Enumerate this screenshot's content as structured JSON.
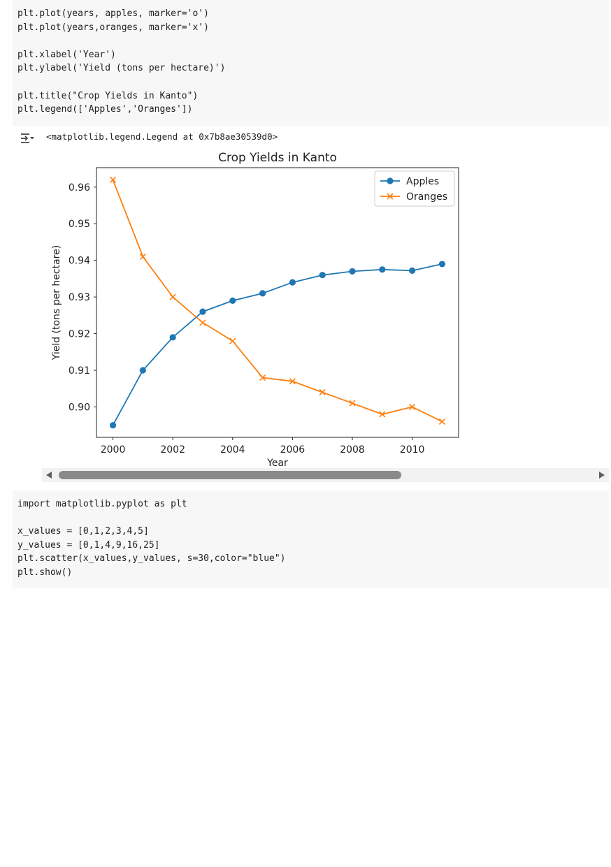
{
  "cells": [
    {
      "type": "code",
      "lines": [
        "plt.plot(years, apples, marker='o')",
        "plt.plot(years,oranges, marker='x')",
        "",
        "plt.xlabel('Year')",
        "plt.ylabel('Yield (tons per hectare)')",
        "",
        "plt.title(\"Crop Yields in Kanto\")",
        "plt.legend(['Apples','Oranges'])"
      ]
    },
    {
      "type": "code",
      "lines": [
        "import matplotlib.pyplot as plt",
        "",
        "x_values = [0,1,2,3,4,5]",
        "y_values = [0,1,4,9,16,25]",
        "plt.scatter(x_values,y_values, s=30,color=\"blue\")",
        "plt.show()"
      ]
    }
  ],
  "output": {
    "text": "<matplotlib.legend.Legend at 0x7b8ae30539d0>",
    "toggle_icon": "output-collapse-icon"
  },
  "chart_data": {
    "type": "line",
    "title": "Crop Yields in Kanto",
    "xlabel": "Year",
    "ylabel": "Yield (tons per hectare)",
    "x": [
      2000,
      2001,
      2002,
      2003,
      2004,
      2005,
      2006,
      2007,
      2008,
      2009,
      2010,
      2011
    ],
    "series": [
      {
        "name": "Apples",
        "marker": "o",
        "color": "#1f77b4",
        "values": [
          0.895,
          0.91,
          0.919,
          0.926,
          0.929,
          0.931,
          0.934,
          0.936,
          0.937,
          0.9375,
          0.9372,
          0.939
        ]
      },
      {
        "name": "Oranges",
        "marker": "x",
        "color": "#ff7f0e",
        "values": [
          0.962,
          0.941,
          0.93,
          0.923,
          0.918,
          0.908,
          0.907,
          0.904,
          0.901,
          0.898,
          0.9,
          0.896
        ]
      }
    ],
    "xticks": [
      2000,
      2002,
      2004,
      2006,
      2008,
      2010
    ],
    "xtick_labels": [
      "2000",
      "2002",
      "2004",
      "2006",
      "2008",
      "2010"
    ],
    "yticks": [
      0.9,
      0.91,
      0.92,
      0.93,
      0.94,
      0.95,
      0.96
    ],
    "ytick_labels": [
      "0.90",
      "0.91",
      "0.92",
      "0.93",
      "0.94",
      "0.95",
      "0.96"
    ],
    "xlim": [
      1999.45,
      2011.55
    ],
    "ylim": [
      0.8917,
      0.9653
    ],
    "legend": "top-right",
    "grid": false
  }
}
